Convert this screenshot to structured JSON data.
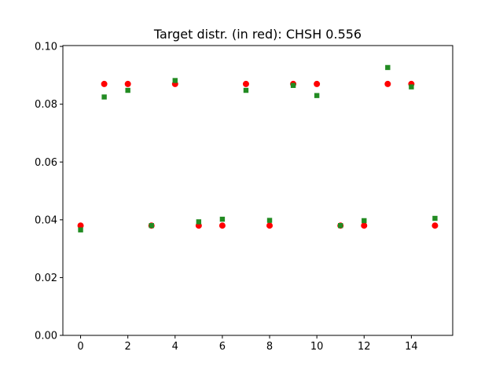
{
  "chart_data": {
    "type": "scatter",
    "title": "Target distr. (in red): CHSH 0.556",
    "xlabel": "",
    "ylabel": "",
    "xlim": [
      -0.75,
      15.75
    ],
    "ylim": [
      0.0,
      0.1003
    ],
    "grid": false,
    "x_ticks": [
      "0",
      "2",
      "4",
      "6",
      "8",
      "10",
      "12",
      "14"
    ],
    "y_ticks": [
      "0.00",
      "0.02",
      "0.04",
      "0.06",
      "0.08",
      "0.10"
    ],
    "x": [
      0,
      1,
      2,
      3,
      4,
      5,
      6,
      7,
      8,
      9,
      10,
      11,
      12,
      13,
      14,
      15
    ],
    "series": [
      {
        "color": "#ff0000",
        "marker": "circle",
        "values": [
          0.038,
          0.087,
          0.087,
          0.038,
          0.087,
          0.038,
          0.038,
          0.087,
          0.038,
          0.087,
          0.087,
          0.038,
          0.038,
          0.087,
          0.087,
          0.038
        ]
      },
      {
        "color": "#228b22",
        "marker": "square",
        "values": [
          0.0365,
          0.0825,
          0.0848,
          0.038,
          0.0882,
          0.0393,
          0.0402,
          0.0848,
          0.0398,
          0.0865,
          0.083,
          0.038,
          0.0397,
          0.0927,
          0.086,
          0.0405
        ]
      }
    ]
  }
}
